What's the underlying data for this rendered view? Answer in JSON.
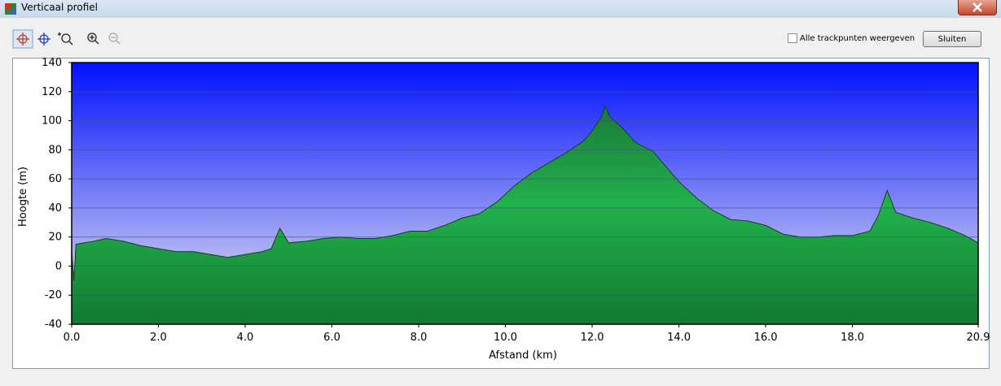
{
  "window": {
    "title": "Verticaal profiel",
    "checkbox_label": "Alle trackpunten weergeven",
    "close_button": "Sluiten"
  },
  "chart_data": {
    "type": "area",
    "x_label": "Afstand  (km)",
    "y_label": "Hoogte (m)",
    "x": [
      0,
      0.05,
      0.1,
      0.5,
      0.8,
      1.2,
      1.6,
      2.0,
      2.4,
      2.8,
      3.2,
      3.6,
      4.0,
      4.4,
      4.6,
      4.8,
      5.0,
      5.4,
      5.8,
      6.2,
      6.6,
      7.0,
      7.4,
      7.8,
      8.2,
      8.6,
      9.0,
      9.4,
      9.8,
      10.2,
      10.6,
      11.0,
      11.4,
      11.8,
      12.0,
      12.2,
      12.3,
      12.4,
      12.7,
      13.0,
      13.4,
      13.6,
      14.0,
      14.4,
      14.8,
      15.2,
      15.6,
      16.0,
      16.4,
      16.8,
      17.2,
      17.6,
      18.0,
      18.4,
      18.6,
      18.8,
      19.0,
      19.4,
      19.8,
      20.2,
      20.6,
      20.9
    ],
    "values": [
      10,
      -10,
      15,
      17,
      19,
      17,
      14,
      12,
      10,
      10,
      8,
      6,
      8,
      10,
      12,
      26,
      16,
      17,
      19,
      20,
      19,
      19,
      21,
      24,
      24,
      28,
      33,
      36,
      44,
      55,
      64,
      71,
      78,
      86,
      93,
      102,
      110,
      103,
      95,
      85,
      79,
      72,
      58,
      47,
      38,
      32,
      31,
      28,
      22,
      20,
      20,
      21,
      21,
      24,
      35,
      52,
      37,
      33,
      30,
      26,
      21,
      16
    ],
    "color": "#1fa845",
    "xlim": [
      0,
      20.9
    ],
    "ylim": [
      -40,
      140
    ],
    "xticks": [
      {
        "value": 0,
        "label": "0.0"
      },
      {
        "value": 2,
        "label": "2.0"
      },
      {
        "value": 4,
        "label": "4.0"
      },
      {
        "value": 6,
        "label": "6.0"
      },
      {
        "value": 8,
        "label": "8.0"
      },
      {
        "value": 10,
        "label": "10.0"
      },
      {
        "value": 12,
        "label": "12.0"
      },
      {
        "value": 14,
        "label": "14.0"
      },
      {
        "value": 16,
        "label": "16.0"
      },
      {
        "value": 18,
        "label": "18.0"
      },
      {
        "value": 20.9,
        "label": "20.9"
      }
    ],
    "yticks": [
      -40,
      -20,
      0,
      20,
      40,
      60,
      80,
      100,
      120,
      140
    ],
    "grid": true
  }
}
